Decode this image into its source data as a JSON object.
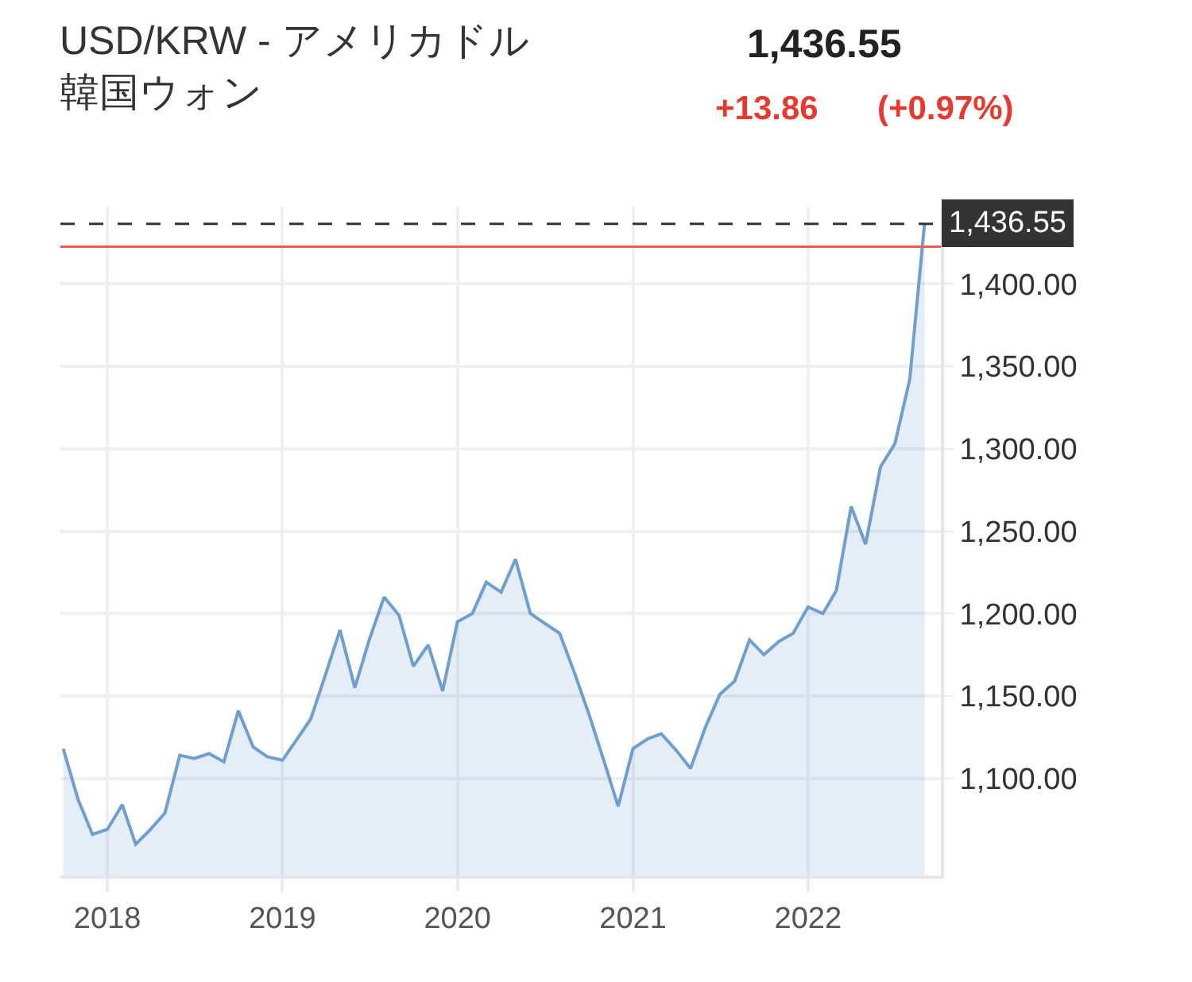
{
  "chart_data": {
    "type": "area",
    "title": "USD/KRW - アメリカドル韓国ウォン",
    "x": [
      "2017-10",
      "2017-11",
      "2017-12",
      "2018-01",
      "2018-02",
      "2018-03",
      "2018-04",
      "2018-05",
      "2018-06",
      "2018-07",
      "2018-08",
      "2018-09",
      "2018-10",
      "2018-11",
      "2018-12",
      "2019-01",
      "2019-02",
      "2019-03",
      "2019-04",
      "2019-05",
      "2019-06",
      "2019-07",
      "2019-08",
      "2019-09",
      "2019-10",
      "2019-11",
      "2019-12",
      "2020-01",
      "2020-02",
      "2020-03",
      "2020-04",
      "2020-05",
      "2020-06",
      "2020-07",
      "2020-08",
      "2020-09",
      "2020-10",
      "2020-11",
      "2020-12",
      "2021-01",
      "2021-02",
      "2021-03",
      "2021-04",
      "2021-05",
      "2021-06",
      "2021-07",
      "2021-08",
      "2021-09",
      "2021-10",
      "2021-11",
      "2021-12",
      "2022-01",
      "2022-02",
      "2022-03",
      "2022-04",
      "2022-05",
      "2022-06",
      "2022-07",
      "2022-08",
      "2022-09"
    ],
    "series": [
      {
        "color": "#6f9fcf",
        "values": [
          1118,
          1087,
          1066,
          1069,
          1084,
          1060,
          1069,
          1079,
          1114,
          1112,
          1115,
          1110,
          1141,
          1119,
          1113,
          1111,
          1124,
          1136,
          1163,
          1190,
          1155,
          1184,
          1210,
          1199,
          1168,
          1181,
          1153,
          1195,
          1200,
          1219,
          1213,
          1233,
          1200,
          1194,
          1188,
          1164,
          1139,
          1111,
          1083,
          1118,
          1124,
          1127,
          1117,
          1106,
          1131,
          1151,
          1159,
          1184,
          1175,
          1183,
          1188,
          1204,
          1200,
          1214,
          1265,
          1242,
          1289,
          1303,
          1342,
          1437
        ]
      }
    ],
    "xlim": [
      "2017-09-25",
      "2022-10-05"
    ],
    "xticks": [
      {
        "value": "2018-01-01",
        "label": "2018"
      },
      {
        "value": "2019-01-01",
        "label": "2019"
      },
      {
        "value": "2020-01-01",
        "label": "2020"
      },
      {
        "value": "2021-01-01",
        "label": "2021"
      },
      {
        "value": "2022-01-01",
        "label": "2022"
      }
    ],
    "ylim": [
      1041,
      1447
    ],
    "yticks": [
      {
        "value": 1100,
        "label": "1,100.00"
      },
      {
        "value": 1150,
        "label": "1,150.00"
      },
      {
        "value": 1200,
        "label": "1,200.00"
      },
      {
        "value": 1250,
        "label": "1,250.00"
      },
      {
        "value": 1300,
        "label": "1,300.00"
      },
      {
        "value": 1350,
        "label": "1,350.00"
      },
      {
        "value": 1400,
        "label": "1,400.00"
      }
    ],
    "ref_lines": [
      {
        "axis": "y",
        "value": 1436.55,
        "label": "1,436.55",
        "color": "#333333",
        "line_style": "dashed"
      },
      {
        "axis": "y",
        "value": 1422.69,
        "label": null,
        "color": "#f05a50",
        "line_style": "solid"
      }
    ],
    "annotations": [
      "1,436.55",
      "+13.86",
      "(+0.97%)"
    ],
    "grid": true,
    "marker": "none",
    "line_style": "solid"
  }
}
